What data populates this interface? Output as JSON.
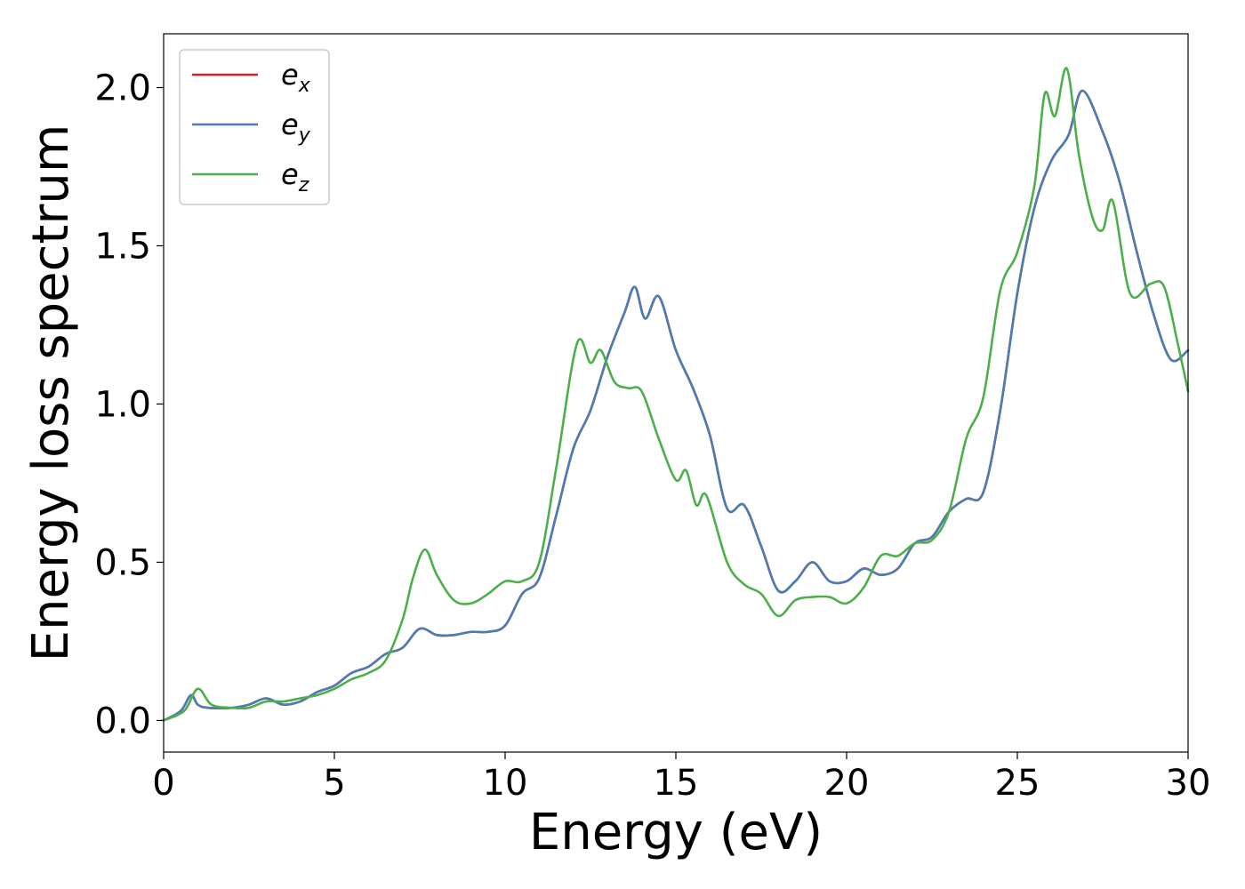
{
  "chart_data": {
    "type": "line",
    "title": "",
    "xlabel": "Energy (eV)",
    "ylabel": "Energy loss spectrum",
    "xlim": [
      0,
      30
    ],
    "ylim": [
      -0.1,
      2.17
    ],
    "xticks": [
      0,
      5,
      10,
      15,
      20,
      25,
      30
    ],
    "xtick_labels": [
      "0",
      "5",
      "10",
      "15",
      "20",
      "25",
      "30"
    ],
    "yticks": [
      0.0,
      0.5,
      1.0,
      1.5,
      2.0
    ],
    "ytick_labels": [
      "0.0",
      "0.5",
      "1.0",
      "1.5",
      "2.0"
    ],
    "grid": false,
    "legend_position": "top-left",
    "series": [
      {
        "name": "x",
        "legend_base": "e",
        "legend_sub": "x",
        "color": "#e41a1c",
        "x": [
          0,
          0.5,
          0.8,
          1.0,
          1.3,
          2.0,
          2.5,
          3.0,
          3.5,
          4.0,
          4.5,
          5.0,
          5.5,
          6.0,
          6.5,
          7.0,
          7.5,
          8.0,
          8.5,
          9.0,
          9.5,
          10.0,
          10.5,
          11.0,
          11.5,
          12.0,
          12.5,
          13.0,
          13.5,
          13.8,
          14.1,
          14.5,
          15.0,
          15.5,
          16.0,
          16.5,
          17.0,
          17.5,
          18.0,
          18.5,
          19.0,
          19.5,
          20.0,
          20.5,
          21.0,
          21.5,
          22.0,
          22.5,
          23.0,
          23.5,
          24.0,
          24.5,
          25.0,
          25.5,
          26.0,
          26.5,
          26.9,
          27.5,
          28.0,
          28.5,
          29.0,
          29.5,
          30.0
        ],
        "y": [
          0,
          0.03,
          0.08,
          0.05,
          0.04,
          0.04,
          0.05,
          0.07,
          0.05,
          0.06,
          0.09,
          0.11,
          0.15,
          0.17,
          0.21,
          0.23,
          0.29,
          0.27,
          0.27,
          0.28,
          0.28,
          0.3,
          0.4,
          0.45,
          0.65,
          0.86,
          0.98,
          1.15,
          1.29,
          1.37,
          1.27,
          1.34,
          1.17,
          1.05,
          0.9,
          0.67,
          0.68,
          0.55,
          0.41,
          0.44,
          0.5,
          0.44,
          0.44,
          0.48,
          0.46,
          0.48,
          0.56,
          0.58,
          0.66,
          0.7,
          0.72,
          0.98,
          1.35,
          1.62,
          1.77,
          1.85,
          1.99,
          1.86,
          1.7,
          1.48,
          1.28,
          1.14,
          1.17
        ]
      },
      {
        "name": "y",
        "legend_base": "e",
        "legend_sub": "y",
        "color": "#4a7db3",
        "x": [
          0,
          0.5,
          0.8,
          1.0,
          1.3,
          2.0,
          2.5,
          3.0,
          3.5,
          4.0,
          4.5,
          5.0,
          5.5,
          6.0,
          6.5,
          7.0,
          7.5,
          8.0,
          8.5,
          9.0,
          9.5,
          10.0,
          10.5,
          11.0,
          11.5,
          12.0,
          12.5,
          13.0,
          13.5,
          13.8,
          14.1,
          14.5,
          15.0,
          15.5,
          16.0,
          16.5,
          17.0,
          17.5,
          18.0,
          18.5,
          19.0,
          19.5,
          20.0,
          20.5,
          21.0,
          21.5,
          22.0,
          22.5,
          23.0,
          23.5,
          24.0,
          24.5,
          25.0,
          25.5,
          26.0,
          26.5,
          26.9,
          27.5,
          28.0,
          28.5,
          29.0,
          29.5,
          30.0
        ],
        "y": [
          0,
          0.03,
          0.08,
          0.05,
          0.04,
          0.04,
          0.05,
          0.07,
          0.05,
          0.06,
          0.09,
          0.11,
          0.15,
          0.17,
          0.21,
          0.23,
          0.29,
          0.27,
          0.27,
          0.28,
          0.28,
          0.3,
          0.4,
          0.45,
          0.65,
          0.86,
          0.98,
          1.15,
          1.29,
          1.37,
          1.27,
          1.34,
          1.17,
          1.05,
          0.9,
          0.67,
          0.68,
          0.55,
          0.41,
          0.44,
          0.5,
          0.44,
          0.44,
          0.48,
          0.46,
          0.48,
          0.56,
          0.58,
          0.66,
          0.7,
          0.72,
          0.98,
          1.35,
          1.62,
          1.77,
          1.85,
          1.99,
          1.86,
          1.7,
          1.48,
          1.28,
          1.14,
          1.17
        ]
      },
      {
        "name": "z",
        "legend_base": "e",
        "legend_sub": "z",
        "color": "#4daf4a",
        "x": [
          0,
          0.6,
          1.0,
          1.4,
          2.0,
          2.5,
          3.0,
          3.5,
          4.0,
          4.5,
          5.0,
          5.5,
          6.0,
          6.5,
          7.0,
          7.3,
          7.65,
          8.0,
          8.5,
          9.0,
          9.5,
          10.0,
          10.5,
          11.0,
          11.5,
          12.1,
          12.5,
          12.8,
          13.2,
          13.6,
          14.0,
          14.5,
          15.0,
          15.3,
          15.6,
          15.9,
          16.5,
          17.0,
          17.5,
          18.0,
          18.5,
          19.0,
          19.5,
          20.0,
          20.5,
          21.0,
          21.5,
          22.0,
          22.5,
          23.0,
          23.5,
          24.0,
          24.5,
          25.0,
          25.5,
          25.8,
          26.1,
          26.45,
          26.8,
          27.2,
          27.5,
          27.8,
          28.3,
          28.9,
          29.3,
          29.7,
          30.0
        ],
        "y": [
          0,
          0.03,
          0.1,
          0.05,
          0.04,
          0.04,
          0.06,
          0.06,
          0.07,
          0.08,
          0.1,
          0.13,
          0.15,
          0.19,
          0.32,
          0.45,
          0.54,
          0.46,
          0.38,
          0.37,
          0.4,
          0.44,
          0.44,
          0.5,
          0.8,
          1.19,
          1.13,
          1.17,
          1.07,
          1.05,
          1.04,
          0.89,
          0.76,
          0.79,
          0.68,
          0.71,
          0.5,
          0.43,
          0.4,
          0.33,
          0.38,
          0.39,
          0.39,
          0.37,
          0.42,
          0.52,
          0.52,
          0.56,
          0.57,
          0.66,
          0.89,
          1.02,
          1.36,
          1.48,
          1.69,
          1.98,
          1.91,
          2.06,
          1.79,
          1.59,
          1.55,
          1.64,
          1.35,
          1.38,
          1.37,
          1.19,
          1.04
        ]
      }
    ]
  }
}
